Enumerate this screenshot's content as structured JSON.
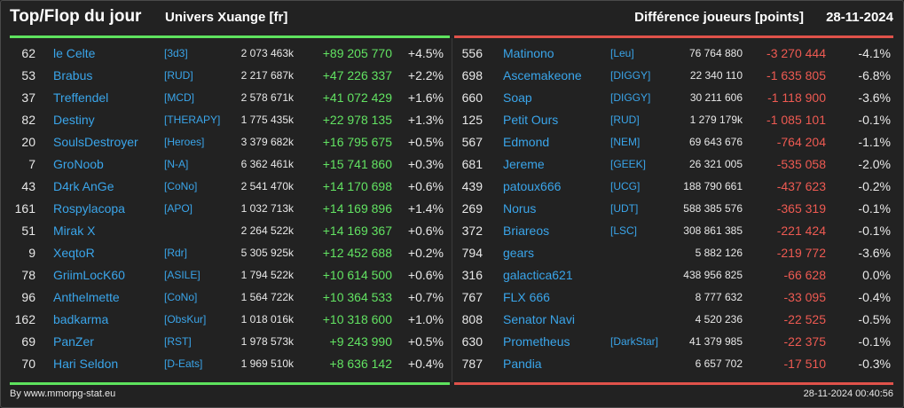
{
  "header": {
    "title": "Top/Flop du jour",
    "universe": "Univers Xuange [fr]",
    "metric": "Différence joueurs [points]",
    "date": "28-11-2024"
  },
  "colors": {
    "accent_green": "#5ee35e",
    "accent_red": "#e0524a",
    "name_blue": "#3aa5ea",
    "background": "#222222"
  },
  "top": [
    {
      "rank": "62",
      "name": "le Celte",
      "alliance": "[3d3]",
      "points": "2 073 463k",
      "diff": "+89 205 770",
      "pct": "+4.5%"
    },
    {
      "rank": "53",
      "name": "Brabus",
      "alliance": "[RUD]",
      "points": "2 217 687k",
      "diff": "+47 226 337",
      "pct": "+2.2%"
    },
    {
      "rank": "37",
      "name": "Treffendel",
      "alliance": "[MCD]",
      "points": "2 578 671k",
      "diff": "+41 072 429",
      "pct": "+1.6%"
    },
    {
      "rank": "82",
      "name": "Destiny",
      "alliance": "[THERAPY]",
      "points": "1 775 435k",
      "diff": "+22 978 135",
      "pct": "+1.3%"
    },
    {
      "rank": "20",
      "name": "SoulsDestroyer",
      "alliance": "[Heroes]",
      "points": "3 379 682k",
      "diff": "+16 795 675",
      "pct": "+0.5%"
    },
    {
      "rank": "7",
      "name": "GroNoob",
      "alliance": "[N-A]",
      "points": "6 362 461k",
      "diff": "+15 741 860",
      "pct": "+0.3%"
    },
    {
      "rank": "43",
      "name": "D4rk AnGe",
      "alliance": "[CoNo]",
      "points": "2 541 470k",
      "diff": "+14 170 698",
      "pct": "+0.6%"
    },
    {
      "rank": "161",
      "name": "Rospylacopa",
      "alliance": "[APO]",
      "points": "1 032 713k",
      "diff": "+14 169 896",
      "pct": "+1.4%"
    },
    {
      "rank": "51",
      "name": "Mirak X",
      "alliance": "",
      "points": "2 264 522k",
      "diff": "+14 169 367",
      "pct": "+0.6%"
    },
    {
      "rank": "9",
      "name": "XeqtoR",
      "alliance": "[Rdr]",
      "points": "5 305 925k",
      "diff": "+12 452 688",
      "pct": "+0.2%"
    },
    {
      "rank": "78",
      "name": "GriimLocK60",
      "alliance": "[ASILE]",
      "points": "1 794 522k",
      "diff": "+10 614 500",
      "pct": "+0.6%"
    },
    {
      "rank": "96",
      "name": "Anthelmette",
      "alliance": "[CoNo]",
      "points": "1 564 722k",
      "diff": "+10 364 533",
      "pct": "+0.7%"
    },
    {
      "rank": "162",
      "name": "badkarma",
      "alliance": "[ObsKur]",
      "points": "1 018 016k",
      "diff": "+10 318 600",
      "pct": "+1.0%"
    },
    {
      "rank": "69",
      "name": "PanZer",
      "alliance": "[RST]",
      "points": "1 978 573k",
      "diff": "+9 243 990",
      "pct": "+0.5%"
    },
    {
      "rank": "70",
      "name": "Hari Seldon",
      "alliance": "[D-Eats]",
      "points": "1 969 510k",
      "diff": "+8 636 142",
      "pct": "+0.4%"
    }
  ],
  "flop": [
    {
      "rank": "556",
      "name": "Matinono",
      "alliance": "[Leu]",
      "points": "76 764 880",
      "diff": "-3 270 444",
      "pct": "-4.1%"
    },
    {
      "rank": "698",
      "name": "Ascemakeone",
      "alliance": "[DIGGY]",
      "points": "22 340 110",
      "diff": "-1 635 805",
      "pct": "-6.8%"
    },
    {
      "rank": "660",
      "name": "Soap",
      "alliance": "[DIGGY]",
      "points": "30 211 606",
      "diff": "-1 118 900",
      "pct": "-3.6%"
    },
    {
      "rank": "125",
      "name": "Petit Ours",
      "alliance": "[RUD]",
      "points": "1 279 179k",
      "diff": "-1 085 101",
      "pct": "-0.1%"
    },
    {
      "rank": "567",
      "name": "Edmond",
      "alliance": "[NEM]",
      "points": "69 643 676",
      "diff": "-764 204",
      "pct": "-1.1%"
    },
    {
      "rank": "681",
      "name": "Jereme",
      "alliance": "[GEEK]",
      "points": "26 321 005",
      "diff": "-535 058",
      "pct": "-2.0%"
    },
    {
      "rank": "439",
      "name": "patoux666",
      "alliance": "[UCG]",
      "points": "188 790 661",
      "diff": "-437 623",
      "pct": "-0.2%"
    },
    {
      "rank": "269",
      "name": "Norus",
      "alliance": "[UDT]",
      "points": "588 385 576",
      "diff": "-365 319",
      "pct": "-0.1%"
    },
    {
      "rank": "372",
      "name": "Briareos",
      "alliance": "[LSC]",
      "points": "308 861 385",
      "diff": "-221 424",
      "pct": "-0.1%"
    },
    {
      "rank": "794",
      "name": "gears",
      "alliance": "",
      "points": "5 882 126",
      "diff": "-219 772",
      "pct": "-3.6%"
    },
    {
      "rank": "316",
      "name": "galactica621",
      "alliance": "",
      "points": "438 956 825",
      "diff": "-66 628",
      "pct": "0.0%"
    },
    {
      "rank": "767",
      "name": "FLX 666",
      "alliance": "",
      "points": "8 777 632",
      "diff": "-33 095",
      "pct": "-0.4%"
    },
    {
      "rank": "808",
      "name": "Senator Navi",
      "alliance": "",
      "points": "4 520 236",
      "diff": "-22 525",
      "pct": "-0.5%"
    },
    {
      "rank": "630",
      "name": "Prometheus",
      "alliance": "[DarkStar]",
      "points": "41 379 985",
      "diff": "-22 375",
      "pct": "-0.1%"
    },
    {
      "rank": "787",
      "name": "Pandia",
      "alliance": "",
      "points": "6 657 702",
      "diff": "-17 510",
      "pct": "-0.3%"
    }
  ],
  "footer": {
    "credit": "By www.mmorpg-stat.eu",
    "timestamp": "28-11-2024 00:40:56"
  }
}
